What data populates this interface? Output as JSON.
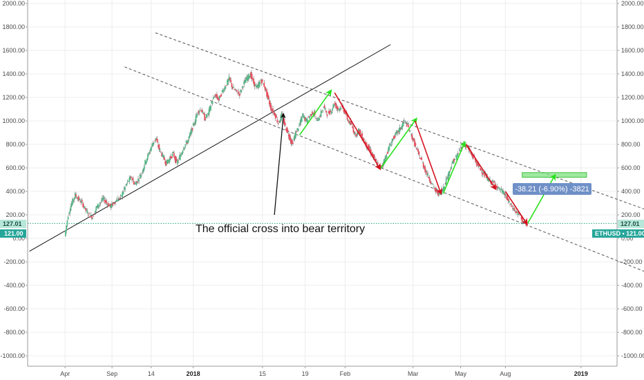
{
  "chart_data": {
    "type": "line",
    "symbol": "ETHUSD",
    "ylim": [
      -1080,
      2040
    ],
    "y_ticks": [
      2000,
      1800,
      1600,
      1400,
      1200,
      1000,
      800,
      600,
      400,
      200,
      0,
      -200,
      -400,
      -600,
      -800,
      -1000
    ],
    "y_tick_labels": [
      "2000.00",
      "1800.00",
      "1600.00",
      "1400.00",
      "1200.00",
      "1000.00",
      "800.00",
      "600.00",
      "400.00",
      "200.00",
      "0.00",
      "-200.00",
      "-400.00",
      "-600.00",
      "-800.00",
      "-1000.00"
    ],
    "x_ticks": [
      {
        "label": "Apr",
        "t": 1.3,
        "bold": false
      },
      {
        "label": "Sep",
        "t": 8.0,
        "bold": false
      },
      {
        "label": "14",
        "t": 13.6,
        "bold": false
      },
      {
        "label": "2018",
        "t": 19.6,
        "bold": true
      },
      {
        "label": "15",
        "t": 29.5,
        "bold": false
      },
      {
        "label": "19",
        "t": 35.6,
        "bold": false
      },
      {
        "label": "Feb",
        "t": 41.3,
        "bold": false
      },
      {
        "label": "Mar",
        "t": 51.0,
        "bold": false
      },
      {
        "label": "May",
        "t": 57.8,
        "bold": false
      },
      {
        "label": "Aug",
        "t": 64.2,
        "bold": false
      },
      {
        "label": "2019",
        "t": 75.0,
        "bold": true
      }
    ],
    "xlim": [
      -8,
      84
    ],
    "price_path": [
      [
        1.3,
        20
      ],
      [
        1.8,
        200
      ],
      [
        2.3,
        300
      ],
      [
        2.8,
        370
      ],
      [
        3.3,
        330
      ],
      [
        3.8,
        300
      ],
      [
        4.3,
        240
      ],
      [
        4.8,
        200
      ],
      [
        5.3,
        180
      ],
      [
        5.8,
        260
      ],
      [
        6.3,
        300
      ],
      [
        6.8,
        340
      ],
      [
        7.3,
        300
      ],
      [
        7.8,
        270
      ],
      [
        8.3,
        300
      ],
      [
        8.8,
        330
      ],
      [
        9.3,
        350
      ],
      [
        9.8,
        420
      ],
      [
        10.3,
        480
      ],
      [
        10.8,
        520
      ],
      [
        11.3,
        460
      ],
      [
        11.8,
        500
      ],
      [
        12.3,
        560
      ],
      [
        12.8,
        650
      ],
      [
        13.3,
        720
      ],
      [
        13.8,
        800
      ],
      [
        14.3,
        850
      ],
      [
        14.8,
        760
      ],
      [
        15.3,
        700
      ],
      [
        15.8,
        640
      ],
      [
        16.3,
        680
      ],
      [
        16.8,
        720
      ],
      [
        17.3,
        640
      ],
      [
        17.8,
        700
      ],
      [
        18.3,
        780
      ],
      [
        18.8,
        820
      ],
      [
        19.3,
        900
      ],
      [
        19.8,
        980
      ],
      [
        20.3,
        1080
      ],
      [
        20.8,
        1100
      ],
      [
        21.3,
        1020
      ],
      [
        21.8,
        1060
      ],
      [
        22.3,
        1160
      ],
      [
        22.8,
        1220
      ],
      [
        23.3,
        1180
      ],
      [
        23.8,
        1250
      ],
      [
        24.3,
        1300
      ],
      [
        24.8,
        1360
      ],
      [
        25.3,
        1280
      ],
      [
        25.8,
        1250
      ],
      [
        26.3,
        1230
      ],
      [
        26.8,
        1310
      ],
      [
        27.3,
        1360
      ],
      [
        27.8,
        1400
      ],
      [
        28.3,
        1320
      ],
      [
        28.8,
        1280
      ],
      [
        29.3,
        1350
      ],
      [
        29.8,
        1300
      ],
      [
        30.3,
        1200
      ],
      [
        30.8,
        1100
      ],
      [
        31.3,
        1060
      ],
      [
        31.8,
        980
      ],
      [
        32.3,
        1050
      ],
      [
        32.8,
        950
      ],
      [
        33.3,
        880
      ],
      [
        33.8,
        800
      ],
      [
        34.3,
        900
      ],
      [
        34.8,
        960
      ],
      [
        35.3,
        1050
      ],
      [
        35.8,
        1000
      ],
      [
        36.3,
        1040
      ],
      [
        36.8,
        1080
      ],
      [
        37.3,
        1000
      ],
      [
        37.8,
        1050
      ],
      [
        38.3,
        1120
      ],
      [
        38.8,
        1060
      ],
      [
        39.3,
        1080
      ],
      [
        39.8,
        1150
      ],
      [
        40.3,
        1100
      ],
      [
        40.8,
        1120
      ],
      [
        41.3,
        1080
      ],
      [
        41.8,
        1000
      ],
      [
        42.3,
        960
      ],
      [
        42.8,
        880
      ],
      [
        43.3,
        920
      ],
      [
        43.8,
        860
      ],
      [
        44.3,
        800
      ],
      [
        44.8,
        760
      ],
      [
        45.3,
        700
      ],
      [
        45.8,
        650
      ],
      [
        46.3,
        600
      ],
      [
        46.8,
        640
      ],
      [
        47.3,
        720
      ],
      [
        47.8,
        800
      ],
      [
        48.3,
        860
      ],
      [
        48.8,
        900
      ],
      [
        49.3,
        940
      ],
      [
        49.8,
        1000
      ],
      [
        50.3,
        960
      ],
      [
        50.8,
        880
      ],
      [
        51.3,
        800
      ],
      [
        51.8,
        720
      ],
      [
        52.3,
        660
      ],
      [
        52.8,
        580
      ],
      [
        53.3,
        520
      ],
      [
        53.8,
        460
      ],
      [
        54.3,
        400
      ],
      [
        54.8,
        380
      ],
      [
        55.3,
        420
      ],
      [
        55.8,
        500
      ],
      [
        56.3,
        580
      ],
      [
        56.8,
        660
      ],
      [
        57.3,
        700
      ],
      [
        57.8,
        760
      ],
      [
        58.3,
        800
      ],
      [
        58.8,
        780
      ],
      [
        59.3,
        720
      ],
      [
        59.8,
        680
      ],
      [
        60.3,
        620
      ],
      [
        60.8,
        580
      ],
      [
        61.3,
        540
      ],
      [
        61.8,
        500
      ],
      [
        62.3,
        480
      ],
      [
        62.8,
        460
      ],
      [
        63.3,
        420
      ],
      [
        63.8,
        400
      ],
      [
        64.3,
        360
      ],
      [
        64.8,
        300
      ],
      [
        65.3,
        260
      ],
      [
        65.8,
        220
      ],
      [
        66.3,
        200
      ],
      [
        66.8,
        140
      ],
      [
        67.3,
        121
      ]
    ],
    "overlays": {
      "trendline": [
        [
          -3.8,
          -110
        ],
        [
          47.8,
          1650
        ]
      ],
      "channel_upper": [
        [
          14.2,
          1750
        ],
        [
          84,
          250
        ]
      ],
      "channel_lower": [
        [
          9.8,
          1460
        ],
        [
          84,
          -280
        ]
      ],
      "green_arrows": [
        [
          [
            34.8,
            880
          ],
          [
            39.3,
            1260
          ]
        ],
        [
          [
            46.3,
            590
          ],
          [
            51.5,
            1020
          ]
        ],
        [
          [
            55.3,
            380
          ],
          [
            58.4,
            820
          ]
        ],
        [
          [
            67.4,
            130
          ],
          [
            71.3,
            540
          ]
        ]
      ],
      "red_arrows": [
        [
          [
            39.8,
            1240
          ],
          [
            46.3,
            590
          ]
        ],
        [
          [
            51.3,
            1000
          ],
          [
            55.0,
            380
          ]
        ],
        [
          [
            58.6,
            800
          ],
          [
            62.8,
            420
          ]
        ],
        [
          [
            64.2,
            400
          ],
          [
            67.3,
            121
          ]
        ]
      ],
      "annotation_arrow": [
        [
          31.2,
          200
        ],
        [
          32.5,
          1060
        ]
      ],
      "target_box": {
        "t0": 66.6,
        "t1": 75.8,
        "p0": 520,
        "p1": 560
      },
      "current_price_line": 127.01
    },
    "annotation": "The official cross into bear territory",
    "measure_label": "-38.21 (-6.90%) -3821",
    "price_tags": {
      "left_upper": "127.01",
      "left_lower": "121.00",
      "right_upper": "127.01",
      "right_lower": "ETHUSD • 121.00"
    },
    "colors": {
      "bull": "#26e21a",
      "bear": "#d3101d",
      "tag_upper": "#b7e7d9",
      "tag_lower": "#26a69a",
      "measure_bg": "#6f90c7",
      "target_box": "#7fe17f",
      "price_dotted": "#1ea37f",
      "candle_up": "#53b987",
      "candle_down": "#eb4d5c"
    }
  }
}
